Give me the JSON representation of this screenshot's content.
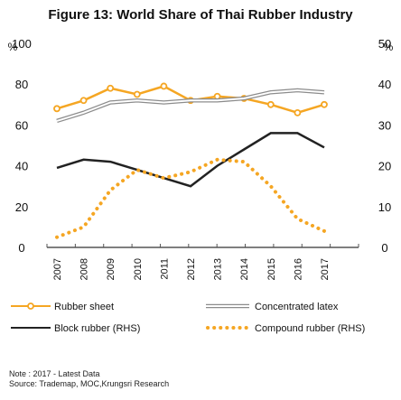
{
  "chart_data": {
    "type": "line",
    "title": "Figure 13: World Share of Thai Rubber Industry",
    "left_unit": "%",
    "right_unit": "%",
    "ylim_left": [
      0,
      100
    ],
    "ylim_right": [
      0,
      50
    ],
    "yticks_left": [
      "0",
      "20",
      "40",
      "60",
      "80",
      "100"
    ],
    "yticks_right": [
      "0",
      "10",
      "20",
      "30",
      "40",
      "50"
    ],
    "x": [
      "2007",
      "2008",
      "2009",
      "2010",
      "2011",
      "2012",
      "2013",
      "2014",
      "2015",
      "2016",
      "2017"
    ],
    "series": [
      {
        "name": "Rubber sheet",
        "axis": "left",
        "style": "line-marker",
        "color": "#f5a623",
        "values": [
          68,
          72,
          78,
          75,
          79,
          72,
          74,
          73,
          70,
          66,
          70
        ]
      },
      {
        "name": "Concentrated latex",
        "axis": "left",
        "style": "double-line",
        "color": "#8c8c8c",
        "values": [
          62,
          66,
          71,
          72,
          71,
          72,
          72,
          73,
          76,
          77,
          76
        ]
      },
      {
        "name": "Block rubber (RHS)",
        "axis": "right",
        "style": "line",
        "color": "#222222",
        "values": [
          19.5,
          21.5,
          21,
          19,
          17,
          15,
          20,
          24,
          28,
          28,
          24.5
        ]
      },
      {
        "name": "Compound rubber (RHS)",
        "axis": "right",
        "style": "dotted",
        "color": "#f5a623",
        "values": [
          2.5,
          5,
          14,
          19,
          17,
          18.5,
          21.5,
          21,
          15,
          7,
          4
        ]
      }
    ],
    "legend_position": "bottom",
    "grid": false
  },
  "note": "Note : 2017 - Latest Data",
  "source": "Source: Trademap, MOC,Krungsri Research"
}
